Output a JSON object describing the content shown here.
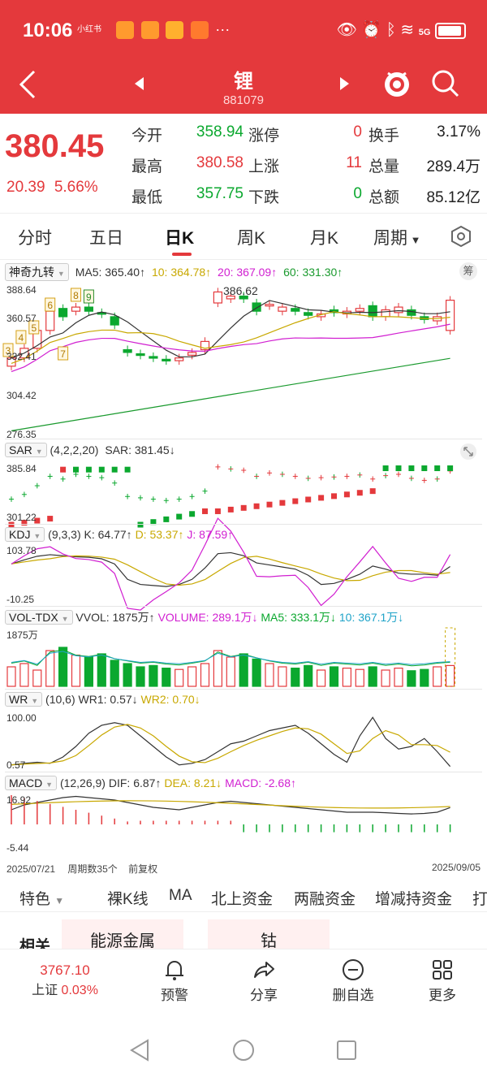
{
  "status": {
    "time": "10:06",
    "network": "5G",
    "app_badge": "小红书"
  },
  "header": {
    "title": "锂",
    "code": "881079"
  },
  "quote": {
    "price": "380.45",
    "change": "20.39",
    "change_pct": "5.66%",
    "rows": [
      [
        {
          "label": "今开",
          "value": "358.94",
          "color": "green"
        },
        {
          "label": "涨停",
          "value": "0",
          "color": "red"
        },
        {
          "label": "换手",
          "value": "3.17%",
          "color": "black"
        }
      ],
      [
        {
          "label": "最高",
          "value": "380.58",
          "color": "red"
        },
        {
          "label": "上涨",
          "value": "11",
          "color": "red"
        },
        {
          "label": "总量",
          "value": "289.4万",
          "color": "black"
        }
      ],
      [
        {
          "label": "最低",
          "value": "357.75",
          "color": "green"
        },
        {
          "label": "下跌",
          "value": "0",
          "color": "green"
        },
        {
          "label": "总额",
          "value": "85.12亿",
          "color": "black"
        }
      ]
    ]
  },
  "tabs": [
    "分时",
    "五日",
    "日K",
    "周K",
    "月K",
    "周期"
  ],
  "active_tab": "日K",
  "main_chart": {
    "indicator": "神奇九转",
    "ma5": "MA5: 365.40↑",
    "ma10": "10: 364.78↑",
    "ma20": "20: 367.09↑",
    "ma60": "60: 331.30↑",
    "chip_btn": "筹",
    "y_top": "388.64",
    "y_mid": "360.57",
    "y_low": "332.41",
    "y_304": "304.42",
    "y_bottom": "276.35",
    "max_label": "386.62",
    "nine_turn": [
      "3",
      "4",
      "5",
      "6",
      "7",
      "8",
      "9"
    ]
  },
  "sar": {
    "name": "SAR",
    "params": "(4,2,2,20)",
    "value": "SAR: 381.45↓",
    "y_top": "385.84",
    "y_bottom": "301.22"
  },
  "kdj": {
    "name": "KDJ",
    "params": "(9,3,3)",
    "k": "K: 64.77↑",
    "d": "D: 53.37↑",
    "j": "J: 87.59↑",
    "y_top": "103.78",
    "y_bottom": "-10.25"
  },
  "vol": {
    "name": "VOL-TDX",
    "vvol": "VVOL: 1875万↑",
    "volume": "VOLUME: 289.1万↓",
    "ma5": "MA5: 333.1万↓",
    "ma10": "10: 367.1万↓",
    "y_top": "1875万"
  },
  "wr": {
    "name": "WR",
    "params": "(10,6)",
    "wr1": "WR1: 0.57↓",
    "wr2": "WR2: 0.70↓",
    "y_top": "100.00",
    "y_bottom": "0.57"
  },
  "macd": {
    "name": "MACD",
    "params": "(12,26,9)",
    "dif": "DIF: 6.87↑",
    "dea": "DEA: 8.21↓",
    "macd": "MACD: -2.68↑",
    "y_top": "16.92",
    "y_bottom": "-5.44"
  },
  "footer": {
    "start_date": "2025/07/21",
    "period_count": "周期数35个",
    "adjust": "前复权",
    "end_date": "2025/09/05"
  },
  "features": [
    "特色",
    "裸K线",
    "MA",
    "北上资金",
    "两融资金",
    "增减持资金",
    "打"
  ],
  "related": {
    "label": "相关",
    "items": [
      "能源金属",
      "钴"
    ]
  },
  "nav": {
    "index_value": "3767.10",
    "index_name": "上证",
    "index_pct": "0.03%",
    "items": [
      "预警",
      "分享",
      "删自选",
      "更多"
    ]
  },
  "colors": {
    "up": "#e4393c",
    "down": "#0ba82f",
    "header_bg": "#e4393c",
    "ma5": "#333333",
    "ma10": "#c8a800",
    "ma20": "#d11fd1",
    "ma60": "#1a9a2e"
  }
}
